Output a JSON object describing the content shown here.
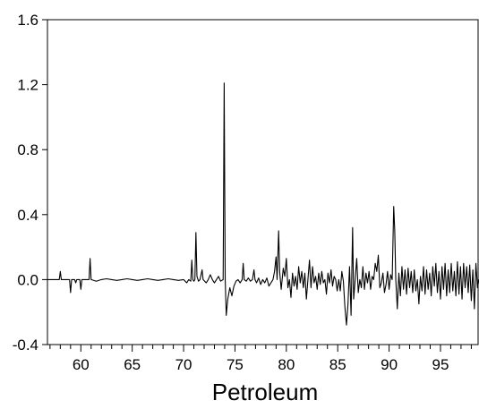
{
  "chart_data": {
    "type": "line",
    "title": "",
    "xlabel": "Petroleum",
    "ylabel": "",
    "xlim": [
      56.75,
      98.75
    ],
    "ylim": [
      -0.4,
      1.6
    ],
    "x_ticks": [
      60,
      65,
      70,
      75,
      80,
      85,
      90,
      95
    ],
    "y_ticks": [
      -0.4,
      0.0,
      0.4,
      0.8,
      1.2,
      1.6
    ],
    "y_tick_labels": [
      "-0.4",
      "0.0",
      "0.4",
      "0.8",
      "1.2",
      "1.6"
    ],
    "x_tick_labels": [
      "60",
      "65",
      "70",
      "75",
      "80",
      "85",
      "90",
      "95"
    ],
    "grid": false,
    "legend": "none",
    "line_color": "#000000",
    "series": [
      {
        "points": [
          [
            56.75,
            0.0
          ],
          [
            57.5,
            0.0
          ],
          [
            57.9,
            0.0
          ],
          [
            58.0,
            0.05
          ],
          [
            58.1,
            0.0
          ],
          [
            58.5,
            0.0
          ],
          [
            58.9,
            0.0
          ],
          [
            59.0,
            -0.08
          ],
          [
            59.1,
            0.0
          ],
          [
            59.4,
            0.0
          ],
          [
            59.5,
            -0.02
          ],
          [
            59.6,
            0.0
          ],
          [
            59.9,
            0.0
          ],
          [
            60.0,
            -0.06
          ],
          [
            60.1,
            0.0
          ],
          [
            60.6,
            0.0
          ],
          [
            60.8,
            0.0
          ],
          [
            60.9,
            0.13
          ],
          [
            61.0,
            0.0
          ],
          [
            61.5,
            -0.01
          ],
          [
            62.0,
            0.0
          ],
          [
            62.5,
            0.005
          ],
          [
            63.0,
            0.0
          ],
          [
            63.5,
            -0.005
          ],
          [
            64.0,
            0.0
          ],
          [
            64.5,
            0.005
          ],
          [
            65.0,
            0.0
          ],
          [
            65.5,
            -0.005
          ],
          [
            66.0,
            0.0
          ],
          [
            66.5,
            0.005
          ],
          [
            67.0,
            0.0
          ],
          [
            67.5,
            -0.005
          ],
          [
            68.0,
            0.0
          ],
          [
            68.5,
            0.005
          ],
          [
            69.0,
            0.0
          ],
          [
            69.5,
            -0.005
          ],
          [
            70.0,
            0.0
          ],
          [
            70.3,
            -0.02
          ],
          [
            70.5,
            0.0
          ],
          [
            70.7,
            -0.01
          ],
          [
            70.8,
            0.12
          ],
          [
            70.9,
            0.0
          ],
          [
            71.0,
            -0.01
          ],
          [
            71.1,
            0.0
          ],
          [
            71.2,
            0.29
          ],
          [
            71.3,
            0.02
          ],
          [
            71.45,
            -0.01
          ],
          [
            71.6,
            0.0
          ],
          [
            71.8,
            0.06
          ],
          [
            71.9,
            0.0
          ],
          [
            72.2,
            -0.02
          ],
          [
            72.4,
            0.0
          ],
          [
            72.6,
            0.03
          ],
          [
            72.8,
            0.0
          ],
          [
            73.0,
            -0.02
          ],
          [
            73.2,
            0.0
          ],
          [
            73.4,
            0.02
          ],
          [
            73.6,
            -0.01
          ],
          [
            73.85,
            0.0
          ],
          [
            73.95,
            1.21
          ],
          [
            74.05,
            0.0
          ],
          [
            74.15,
            -0.22
          ],
          [
            74.3,
            -0.12
          ],
          [
            74.5,
            -0.05
          ],
          [
            74.7,
            -0.1
          ],
          [
            74.9,
            -0.04
          ],
          [
            75.1,
            -0.01
          ],
          [
            75.3,
            0.0
          ],
          [
            75.5,
            -0.02
          ],
          [
            75.7,
            0.0
          ],
          [
            75.8,
            0.1
          ],
          [
            75.9,
            0.0
          ],
          [
            76.1,
            -0.01
          ],
          [
            76.3,
            0.01
          ],
          [
            76.5,
            -0.01
          ],
          [
            76.7,
            0.0
          ],
          [
            76.85,
            0.06
          ],
          [
            76.95,
            0.0
          ],
          [
            77.1,
            -0.02
          ],
          [
            77.3,
            0.01
          ],
          [
            77.5,
            -0.03
          ],
          [
            77.7,
            0.0
          ],
          [
            77.9,
            -0.02
          ],
          [
            78.1,
            0.01
          ],
          [
            78.3,
            -0.04
          ],
          [
            78.5,
            -0.02
          ],
          [
            78.7,
            0.0
          ],
          [
            78.85,
            0.05
          ],
          [
            79.0,
            0.14
          ],
          [
            79.1,
            0.0
          ],
          [
            79.25,
            0.3
          ],
          [
            79.35,
            0.05
          ],
          [
            79.5,
            -0.06
          ],
          [
            79.7,
            0.07
          ],
          [
            79.85,
            0.02
          ],
          [
            80.0,
            0.13
          ],
          [
            80.15,
            -0.05
          ],
          [
            80.3,
            0.0
          ],
          [
            80.45,
            -0.11
          ],
          [
            80.6,
            0.04
          ],
          [
            80.75,
            -0.04
          ],
          [
            80.9,
            0.02
          ],
          [
            81.05,
            -0.06
          ],
          [
            81.2,
            0.08
          ],
          [
            81.35,
            -0.02
          ],
          [
            81.5,
            0.05
          ],
          [
            81.65,
            -0.05
          ],
          [
            81.8,
            0.04
          ],
          [
            81.95,
            -0.12
          ],
          [
            82.1,
            0.0
          ],
          [
            82.25,
            0.12
          ],
          [
            82.4,
            -0.05
          ],
          [
            82.55,
            0.08
          ],
          [
            82.7,
            -0.02
          ],
          [
            82.85,
            0.02
          ],
          [
            83.0,
            -0.06
          ],
          [
            83.15,
            0.04
          ],
          [
            83.3,
            -0.03
          ],
          [
            83.45,
            0.05
          ],
          [
            83.6,
            -0.02
          ],
          [
            83.75,
            0.0
          ],
          [
            83.9,
            -0.09
          ],
          [
            84.05,
            0.04
          ],
          [
            84.2,
            -0.02
          ],
          [
            84.35,
            0.06
          ],
          [
            84.5,
            -0.04
          ],
          [
            84.65,
            0.02
          ],
          [
            84.8,
            0.0
          ],
          [
            84.95,
            -0.07
          ],
          [
            85.1,
            0.0
          ],
          [
            85.25,
            -0.07
          ],
          [
            85.4,
            0.05
          ],
          [
            85.55,
            -0.01
          ],
          [
            85.7,
            -0.17
          ],
          [
            85.85,
            -0.28
          ],
          [
            86.0,
            -0.15
          ],
          [
            86.15,
            0.08
          ],
          [
            86.3,
            -0.22
          ],
          [
            86.45,
            0.32
          ],
          [
            86.55,
            -0.12
          ],
          [
            86.7,
            0.0
          ],
          [
            86.85,
            0.13
          ],
          [
            87.0,
            -0.08
          ],
          [
            87.15,
            0.0
          ],
          [
            87.3,
            -0.05
          ],
          [
            87.45,
            0.08
          ],
          [
            87.6,
            -0.06
          ],
          [
            87.75,
            0.04
          ],
          [
            87.9,
            -0.02
          ],
          [
            88.05,
            0.05
          ],
          [
            88.2,
            -0.06
          ],
          [
            88.35,
            0.02
          ],
          [
            88.5,
            0.0
          ],
          [
            88.65,
            0.1
          ],
          [
            88.8,
            0.05
          ],
          [
            88.95,
            0.15
          ],
          [
            89.1,
            -0.05
          ],
          [
            89.25,
            -0.02
          ],
          [
            89.4,
            0.04
          ],
          [
            89.55,
            -0.08
          ],
          [
            89.7,
            -0.03
          ],
          [
            89.85,
            0.05
          ],
          [
            90.0,
            -0.06
          ],
          [
            90.15,
            0.03
          ],
          [
            90.3,
            0.0
          ],
          [
            90.45,
            0.45
          ],
          [
            90.55,
            0.3
          ],
          [
            90.65,
            0.0
          ],
          [
            90.8,
            -0.18
          ],
          [
            90.95,
            0.04
          ],
          [
            91.1,
            -0.1
          ],
          [
            91.25,
            0.08
          ],
          [
            91.4,
            -0.06
          ],
          [
            91.55,
            0.06
          ],
          [
            91.7,
            -0.09
          ],
          [
            91.85,
            0.07
          ],
          [
            92.0,
            -0.05
          ],
          [
            92.15,
            0.05
          ],
          [
            92.3,
            -0.08
          ],
          [
            92.45,
            0.06
          ],
          [
            92.6,
            -0.07
          ],
          [
            92.75,
            0.0
          ],
          [
            92.9,
            -0.15
          ],
          [
            93.05,
            0.02
          ],
          [
            93.2,
            -0.07
          ],
          [
            93.35,
            0.08
          ],
          [
            93.5,
            -0.09
          ],
          [
            93.65,
            0.06
          ],
          [
            93.8,
            -0.06
          ],
          [
            93.95,
            0.04
          ],
          [
            94.1,
            -0.1
          ],
          [
            94.25,
            0.08
          ],
          [
            94.4,
            -0.04
          ],
          [
            94.55,
            0.1
          ],
          [
            94.7,
            -0.08
          ],
          [
            94.85,
            0.05
          ],
          [
            95.0,
            -0.12
          ],
          [
            95.15,
            0.08
          ],
          [
            95.3,
            -0.06
          ],
          [
            95.45,
            0.1
          ],
          [
            95.6,
            -0.1
          ],
          [
            95.75,
            0.06
          ],
          [
            95.9,
            -0.08
          ],
          [
            96.05,
            0.1
          ],
          [
            96.2,
            -0.07
          ],
          [
            96.35,
            0.05
          ],
          [
            96.5,
            -0.1
          ],
          [
            96.65,
            0.11
          ],
          [
            96.8,
            -0.09
          ],
          [
            96.95,
            0.08
          ],
          [
            97.1,
            -0.12
          ],
          [
            97.25,
            0.1
          ],
          [
            97.4,
            -0.05
          ],
          [
            97.55,
            0.08
          ],
          [
            97.7,
            -0.08
          ],
          [
            97.85,
            0.09
          ],
          [
            98.0,
            -0.13
          ],
          [
            98.15,
            0.06
          ],
          [
            98.3,
            -0.18
          ],
          [
            98.45,
            0.1
          ],
          [
            98.6,
            -0.05
          ],
          [
            98.75,
            0.0
          ]
        ]
      }
    ]
  }
}
